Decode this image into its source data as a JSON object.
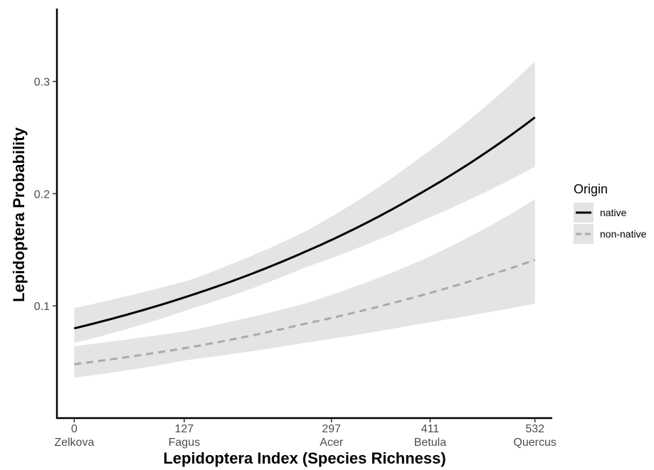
{
  "chart_data": {
    "type": "line",
    "title": "",
    "xlabel": "Lepidoptera Index (Species Richness)",
    "ylabel": "Lepidoptera Probability",
    "xlim": [
      -20,
      552
    ],
    "ylim": [
      0.0,
      0.365
    ],
    "x_ticks": [
      {
        "value": 0,
        "label": "0",
        "name": "Zelkova"
      },
      {
        "value": 127,
        "label": "127",
        "name": "Fagus"
      },
      {
        "value": 297,
        "label": "297",
        "name": "Acer"
      },
      {
        "value": 411,
        "label": "411",
        "name": "Betula"
      },
      {
        "value": 532,
        "label": "532",
        "name": "Quercus"
      }
    ],
    "y_ticks": [
      {
        "value": 0.1,
        "label": "0.1"
      },
      {
        "value": 0.2,
        "label": "0.2"
      },
      {
        "value": 0.3,
        "label": "0.3"
      }
    ],
    "grid": false,
    "legend": {
      "title": "Origin",
      "position": "right"
    },
    "series": [
      {
        "name": "native",
        "color": "#000000",
        "dash": "solid",
        "ribbon_color": "#e3e3e3",
        "x": [
          0,
          133,
          266,
          399,
          532
        ],
        "y": [
          0.08,
          0.109,
          0.148,
          0.2,
          0.268
        ],
        "lower": [
          0.067,
          0.097,
          0.134,
          0.175,
          0.224
        ],
        "upper": [
          0.098,
          0.123,
          0.166,
          0.232,
          0.318
        ]
      },
      {
        "name": "non-native",
        "color": "#aaaaaa",
        "dash": "dashed",
        "ribbon_color": "#e3e3e3",
        "x": [
          0,
          133,
          266,
          399,
          532
        ],
        "y": [
          0.048,
          0.063,
          0.084,
          0.109,
          0.141
        ],
        "lower": [
          0.036,
          0.052,
          0.067,
          0.084,
          0.102
        ],
        "upper": [
          0.064,
          0.078,
          0.102,
          0.14,
          0.195
        ]
      }
    ]
  }
}
